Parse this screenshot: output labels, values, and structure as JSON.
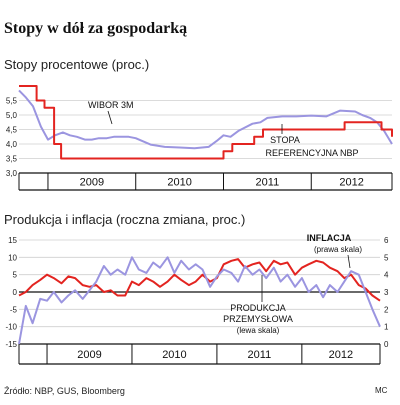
{
  "title": "Stopy w dół za gospodarką",
  "source": "Źródło: NBP, GUS, Bloomberg",
  "author_mark": "MC",
  "chart_data": [
    {
      "type": "line",
      "title": "Stopy procentowe (proc.)",
      "ylim": [
        3.0,
        6.0
      ],
      "yticks": [
        3.0,
        3.5,
        4.0,
        4.5,
        5.0,
        5.5
      ],
      "ytick_labels": [
        "3,0",
        "3,5",
        "4,0",
        "4,5",
        "5,0",
        "5,5"
      ],
      "xlim": [
        2008.67,
        2012.92
      ],
      "years": [
        "2009",
        "2010",
        "2011",
        "2012"
      ],
      "year_bounds": [
        2008.67,
        2009,
        2010,
        2011,
        2012,
        2012.92
      ],
      "grid": true,
      "annotations": [
        {
          "text": "WIBOR 3M",
          "series": "wibor"
        },
        {
          "line1": "STOPA",
          "line2": "REFERENCYJNA NBP",
          "series": "ref"
        }
      ],
      "series": [
        {
          "id": "wibor",
          "color": "#9b95e0",
          "step": false,
          "x": [
            2008.67,
            2008.75,
            2008.83,
            2008.92,
            2009.0,
            2009.08,
            2009.17,
            2009.25,
            2009.33,
            2009.42,
            2009.5,
            2009.58,
            2009.67,
            2009.75,
            2009.83,
            2009.92,
            2010.0,
            2010.17,
            2010.33,
            2010.5,
            2010.67,
            2010.83,
            2010.92,
            2011.0,
            2011.08,
            2011.17,
            2011.33,
            2011.42,
            2011.5,
            2011.67,
            2011.83,
            2012.0,
            2012.17,
            2012.33,
            2012.5,
            2012.58,
            2012.67,
            2012.75,
            2012.83,
            2012.92
          ],
          "values": [
            5.85,
            5.6,
            5.3,
            4.6,
            4.15,
            4.3,
            4.4,
            4.3,
            4.25,
            4.15,
            4.15,
            4.2,
            4.2,
            4.25,
            4.25,
            4.25,
            4.2,
            3.98,
            3.9,
            3.88,
            3.85,
            3.9,
            4.1,
            4.3,
            4.25,
            4.45,
            4.7,
            4.75,
            4.9,
            4.95,
            4.95,
            4.98,
            4.95,
            5.15,
            5.12,
            5.0,
            4.9,
            4.75,
            4.45,
            4.0
          ]
        },
        {
          "id": "ref",
          "color": "#e32420",
          "step": true,
          "x": [
            2008.67,
            2008.87,
            2008.96,
            2009.07,
            2009.15,
            2009.5,
            2011.0,
            2011.1,
            2011.35,
            2011.45,
            2012.38,
            2012.8,
            2012.92
          ],
          "values": [
            6.0,
            5.5,
            5.25,
            4.0,
            3.5,
            3.5,
            3.75,
            4.0,
            4.25,
            4.5,
            4.75,
            4.5,
            4.25
          ]
        }
      ]
    },
    {
      "type": "line",
      "title": "Produkcja i inflacja (roczna zmiana, proc.)",
      "ylim": [
        -15,
        15
      ],
      "yticks": [
        -15,
        -10,
        -5,
        0,
        5,
        10,
        15
      ],
      "ytick_labels": [
        "-15",
        "-10",
        "-5",
        "0",
        "5",
        "10",
        "15"
      ],
      "y2lim": [
        0,
        6
      ],
      "y2ticks": [
        0,
        1,
        2,
        3,
        4,
        5,
        6
      ],
      "xlim": [
        2008.67,
        2012.92
      ],
      "years": [
        "2009",
        "2010",
        "2011",
        "2012"
      ],
      "year_bounds": [
        2008.67,
        2009,
        2010,
        2011,
        2012,
        2012.92
      ],
      "grid": true,
      "zero_line": true,
      "annotations": [
        {
          "line1": "INFLACJA",
          "line2": "(prawa skala)",
          "series": "inflation"
        },
        {
          "line1": "PRODUKCJA",
          "line2": "PRZEMYSŁOWA",
          "line3": "(lewa skala)",
          "series": "production"
        }
      ],
      "series": [
        {
          "id": "production",
          "axis": "left",
          "color": "#e32420",
          "x": [
            2008.67,
            2008.75,
            2008.83,
            2008.92,
            2009.0,
            2009.08,
            2009.17,
            2009.25,
            2009.33,
            2009.42,
            2009.5,
            2009.58,
            2009.67,
            2009.75,
            2009.83,
            2009.92,
            2010.0,
            2010.08,
            2010.17,
            2010.25,
            2010.33,
            2010.42,
            2010.5,
            2010.58,
            2010.67,
            2010.75,
            2010.83,
            2010.92,
            2011.0,
            2011.08,
            2011.17,
            2011.25,
            2011.33,
            2011.42,
            2011.5,
            2011.58,
            2011.67,
            2011.75,
            2011.83,
            2011.92,
            2012.0,
            2012.08,
            2012.17,
            2012.25,
            2012.33,
            2012.42,
            2012.5,
            2012.58,
            2012.67,
            2012.75,
            2012.83,
            2012.92
          ],
          "values": [
            -1,
            0,
            2,
            3.5,
            5,
            4,
            2.5,
            4.5,
            4,
            2,
            1.5,
            2,
            0,
            0.5,
            -1,
            -1,
            3,
            2,
            4,
            3,
            1.5,
            3,
            5,
            3.5,
            2,
            3,
            5,
            3,
            4,
            8,
            9,
            9.5,
            7,
            8,
            8.5,
            6,
            9,
            8,
            8.5,
            5,
            7,
            8,
            9,
            8.5,
            7,
            6,
            4,
            5,
            2,
            1,
            -1,
            -2.5
          ]
        },
        {
          "id": "inflation",
          "axis": "right",
          "color": "#9b95e0",
          "x": [
            2008.67,
            2008.75,
            2008.83,
            2008.92,
            2009.0,
            2009.08,
            2009.17,
            2009.25,
            2009.33,
            2009.42,
            2009.5,
            2009.58,
            2009.67,
            2009.75,
            2009.83,
            2009.92,
            2010.0,
            2010.08,
            2010.17,
            2010.25,
            2010.33,
            2010.42,
            2010.5,
            2010.58,
            2010.67,
            2010.75,
            2010.83,
            2010.92,
            2011.0,
            2011.08,
            2011.17,
            2011.25,
            2011.33,
            2011.42,
            2011.5,
            2011.58,
            2011.67,
            2011.75,
            2011.83,
            2011.92,
            2012.0,
            2012.08,
            2012.17,
            2012.25,
            2012.33,
            2012.42,
            2012.5,
            2012.58,
            2012.67,
            2012.75,
            2012.83,
            2012.92
          ],
          "values": [
            0,
            2.2,
            1.2,
            2.6,
            2.5,
            3.0,
            2.4,
            2.8,
            3.1,
            2.6,
            3.1,
            3.6,
            4.5,
            4.0,
            4.3,
            4.0,
            5.0,
            4.3,
            4.1,
            4.7,
            4.4,
            5.0,
            4.1,
            4.8,
            4.3,
            4.6,
            4.3,
            3.3,
            3.9,
            4.3,
            4.1,
            3.6,
            4.5,
            4.0,
            4.3,
            3.8,
            4.4,
            3.6,
            4.0,
            3.3,
            3.8,
            3.0,
            3.4,
            2.7,
            3.4,
            3.0,
            3.6,
            4.2,
            4.0,
            3.0,
            2.0,
            1.0
          ]
        }
      ]
    }
  ]
}
